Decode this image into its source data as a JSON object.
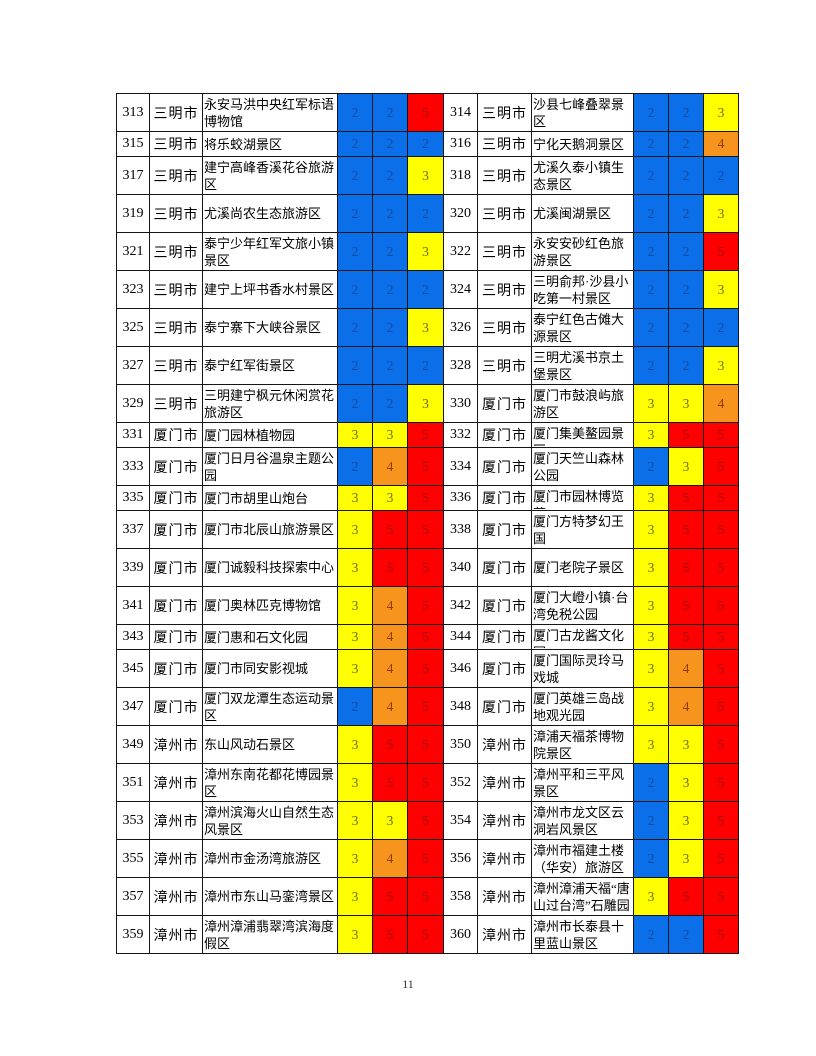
{
  "page": {
    "number": "11"
  },
  "score_colors": {
    "2": {
      "bg": "#0a6fe8",
      "fg": "#164a9e"
    },
    "3": {
      "bg": "#ffff00",
      "fg": "#6d6d00"
    },
    "4": {
      "bg": "#f7941d",
      "fg": "#8f3c00"
    },
    "5": {
      "bg": "#fe0000",
      "fg": "#9c0000"
    }
  },
  "table": {
    "rows": [
      {
        "h": "t",
        "left": {
          "no": "313",
          "city": "三明市",
          "name": "永安马洪中央红军标语博物馆",
          "scores": [
            2,
            2,
            5
          ]
        },
        "right": {
          "no": "314",
          "city": "三明市",
          "name": "沙县七峰叠翠景区",
          "scores": [
            2,
            2,
            3
          ]
        }
      },
      {
        "h": "s",
        "left": {
          "no": "315",
          "city": "三明市",
          "name": "将乐蛟湖景区",
          "scores": [
            2,
            2,
            2
          ]
        },
        "right": {
          "no": "316",
          "city": "三明市",
          "name": "宁化天鹅洞景区",
          "scores": [
            2,
            2,
            4
          ]
        }
      },
      {
        "h": "t",
        "left": {
          "no": "317",
          "city": "三明市",
          "name": "建宁高峰香溪花谷旅游区",
          "scores": [
            2,
            2,
            3
          ]
        },
        "right": {
          "no": "318",
          "city": "三明市",
          "name": "尤溪久泰小镇生态景区",
          "scores": [
            2,
            2,
            2
          ]
        }
      },
      {
        "h": "t",
        "left": {
          "no": "319",
          "city": "三明市",
          "name": "尤溪尚农生态旅游区",
          "scores": [
            2,
            2,
            2
          ]
        },
        "right": {
          "no": "320",
          "city": "三明市",
          "name": "尤溪闽湖景区",
          "scores": [
            2,
            2,
            3
          ]
        }
      },
      {
        "h": "t",
        "left": {
          "no": "321",
          "city": "三明市",
          "name": "泰宁少年红军文旅小镇景区",
          "scores": [
            2,
            2,
            3
          ]
        },
        "right": {
          "no": "322",
          "city": "三明市",
          "name": "永安安砂红色旅游景区",
          "scores": [
            2,
            2,
            5
          ]
        }
      },
      {
        "h": "t",
        "left": {
          "no": "323",
          "city": "三明市",
          "name": "建宁上坪书香水村景区",
          "scores": [
            2,
            2,
            2
          ]
        },
        "right": {
          "no": "324",
          "city": "三明市",
          "name": "三明俞邦·沙县小吃第一村景区",
          "scores": [
            2,
            2,
            3
          ]
        }
      },
      {
        "h": "t",
        "left": {
          "no": "325",
          "city": "三明市",
          "name": "泰宁寨下大峡谷景区",
          "scores": [
            2,
            2,
            3
          ]
        },
        "right": {
          "no": "326",
          "city": "三明市",
          "name": "泰宁红色古傩大源景区",
          "scores": [
            2,
            2,
            2
          ]
        }
      },
      {
        "h": "t",
        "left": {
          "no": "327",
          "city": "三明市",
          "name": "泰宁红军街景区",
          "scores": [
            2,
            2,
            2
          ]
        },
        "right": {
          "no": "328",
          "city": "三明市",
          "name": "三明尤溪书京土堡景区",
          "scores": [
            2,
            2,
            3
          ]
        }
      },
      {
        "h": "t",
        "left": {
          "no": "329",
          "city": "三明市",
          "name": "三明建宁枫元休闲赏花旅游区",
          "scores": [
            2,
            2,
            3
          ]
        },
        "right": {
          "no": "330",
          "city": "厦门市",
          "name": "厦门市鼓浪屿旅游区",
          "scores": [
            3,
            3,
            4
          ]
        }
      },
      {
        "h": "s",
        "left": {
          "no": "331",
          "city": "厦门市",
          "name": "厦门园林植物园",
          "scores": [
            3,
            3,
            5
          ]
        },
        "right": {
          "no": "332",
          "city": "厦门市",
          "name": "厦门集美鳌园景区",
          "scores": [
            3,
            5,
            5
          ]
        }
      },
      {
        "h": "t",
        "left": {
          "no": "333",
          "city": "厦门市",
          "name": "厦门日月谷温泉主题公园",
          "scores": [
            2,
            4,
            5
          ]
        },
        "right": {
          "no": "334",
          "city": "厦门市",
          "name": "厦门天竺山森林公园",
          "scores": [
            2,
            3,
            5
          ]
        }
      },
      {
        "h": "s",
        "left": {
          "no": "335",
          "city": "厦门市",
          "name": "厦门市胡里山炮台",
          "scores": [
            3,
            3,
            5
          ]
        },
        "right": {
          "no": "336",
          "city": "厦门市",
          "name": "厦门市园林博览苑",
          "scores": [
            3,
            5,
            5
          ]
        }
      },
      {
        "h": "t",
        "left": {
          "no": "337",
          "city": "厦门市",
          "name": "厦门市北辰山旅游景区",
          "scores": [
            3,
            5,
            5
          ]
        },
        "right": {
          "no": "338",
          "city": "厦门市",
          "name": "厦门方特梦幻王国",
          "scores": [
            3,
            5,
            5
          ]
        }
      },
      {
        "h": "t",
        "left": {
          "no": "339",
          "city": "厦门市",
          "name": "厦门诚毅科技探索中心",
          "scores": [
            3,
            5,
            5
          ]
        },
        "right": {
          "no": "340",
          "city": "厦门市",
          "name": "厦门老院子景区",
          "scores": [
            3,
            5,
            5
          ]
        }
      },
      {
        "h": "t",
        "left": {
          "no": "341",
          "city": "厦门市",
          "name": "厦门奥林匹克博物馆",
          "scores": [
            3,
            4,
            5
          ]
        },
        "right": {
          "no": "342",
          "city": "厦门市",
          "name": "厦门大嶝小镇·台湾免税公园",
          "scores": [
            3,
            5,
            5
          ]
        }
      },
      {
        "h": "s",
        "left": {
          "no": "343",
          "city": "厦门市",
          "name": "厦门惠和石文化园",
          "scores": [
            3,
            4,
            5
          ]
        },
        "right": {
          "no": "344",
          "city": "厦门市",
          "name": "厦门古龙酱文化园",
          "scores": [
            3,
            5,
            5
          ]
        }
      },
      {
        "h": "t",
        "left": {
          "no": "345",
          "city": "厦门市",
          "name": "厦门市同安影视城",
          "scores": [
            3,
            4,
            5
          ]
        },
        "right": {
          "no": "346",
          "city": "厦门市",
          "name": "厦门国际灵玲马戏城",
          "scores": [
            3,
            4,
            5
          ]
        }
      },
      {
        "h": "t",
        "left": {
          "no": "347",
          "city": "厦门市",
          "name": "厦门双龙潭生态运动景区",
          "scores": [
            2,
            4,
            5
          ]
        },
        "right": {
          "no": "348",
          "city": "厦门市",
          "name": "厦门英雄三岛战地观光园",
          "scores": [
            3,
            4,
            5
          ]
        }
      },
      {
        "h": "t",
        "left": {
          "no": "349",
          "city": "漳州市",
          "name": "东山风动石景区",
          "scores": [
            3,
            5,
            5
          ]
        },
        "right": {
          "no": "350",
          "city": "漳州市",
          "name": "漳浦天福茶博物院景区",
          "scores": [
            3,
            3,
            5
          ]
        }
      },
      {
        "h": "t",
        "left": {
          "no": "351",
          "city": "漳州市",
          "name": "漳州东南花都花博园景区",
          "scores": [
            3,
            5,
            5
          ]
        },
        "right": {
          "no": "352",
          "city": "漳州市",
          "name": "漳州平和三平风景区",
          "scores": [
            2,
            3,
            5
          ]
        }
      },
      {
        "h": "t",
        "left": {
          "no": "353",
          "city": "漳州市",
          "name": "漳州滨海火山自然生态风景区",
          "scores": [
            3,
            3,
            5
          ]
        },
        "right": {
          "no": "354",
          "city": "漳州市",
          "name": "漳州市龙文区云洞岩风景区",
          "scores": [
            2,
            3,
            5
          ]
        }
      },
      {
        "h": "t",
        "left": {
          "no": "355",
          "city": "漳州市",
          "name": "漳州市金汤湾旅游区",
          "scores": [
            3,
            4,
            5
          ]
        },
        "right": {
          "no": "356",
          "city": "漳州市",
          "name": "漳州市福建土楼（华安）旅游区",
          "scores": [
            2,
            3,
            5
          ]
        }
      },
      {
        "h": "t",
        "left": {
          "no": "357",
          "city": "漳州市",
          "name": "漳州市东山马銮湾景区",
          "scores": [
            3,
            5,
            5
          ]
        },
        "right": {
          "no": "358",
          "city": "漳州市",
          "name": "漳州漳浦天福“唐山过台湾”石雕园",
          "scores": [
            3,
            5,
            5
          ]
        }
      },
      {
        "h": "t",
        "left": {
          "no": "359",
          "city": "漳州市",
          "name": "漳州漳浦翡翠湾滨海度假区",
          "scores": [
            3,
            5,
            5
          ]
        },
        "right": {
          "no": "360",
          "city": "漳州市",
          "name": "漳州市长泰县十里蓝山景区",
          "scores": [
            2,
            2,
            5
          ]
        }
      }
    ]
  }
}
